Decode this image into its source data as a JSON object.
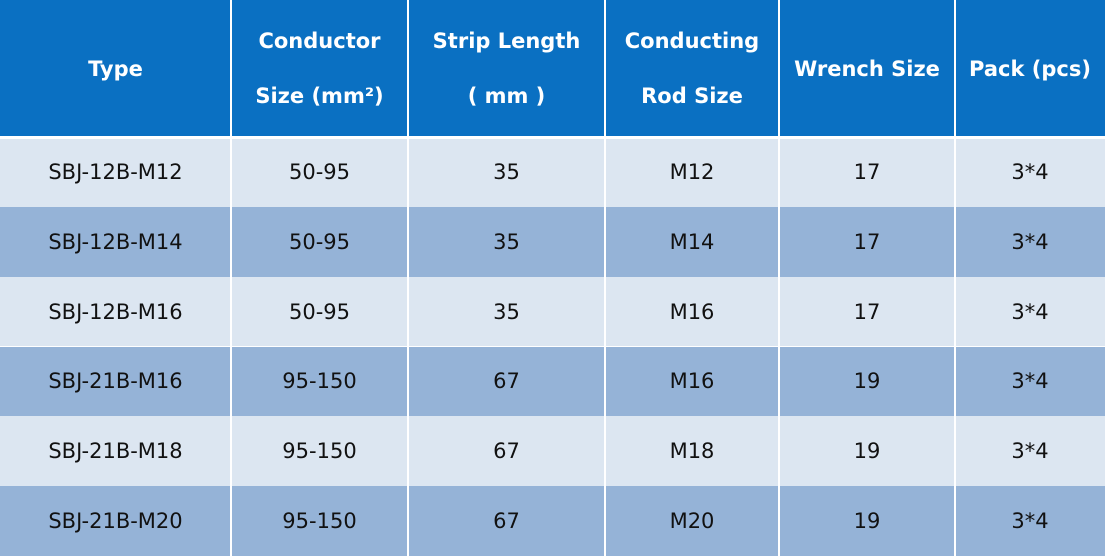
{
  "table": {
    "header": [
      [
        "Type"
      ],
      [
        "Conductor",
        "Size (mm²)"
      ],
      [
        "Strip Length",
        "( mm )"
      ],
      [
        "Conducting",
        "Rod Size"
      ],
      [
        "Wrench Size"
      ],
      [
        "Pack (pcs)"
      ]
    ],
    "rows": [
      [
        "SBJ-12B-M12",
        "50-95",
        "35",
        "M12",
        "17",
        "3*4"
      ],
      [
        "SBJ-12B-M14",
        "50-95",
        "35",
        "M14",
        "17",
        "3*4"
      ],
      [
        "SBJ-12B-M16",
        "50-95",
        "35",
        "M16",
        "17",
        "3*4"
      ],
      [
        "SBJ-21B-M16",
        "95-150",
        "67",
        "M16",
        "19",
        "3*4"
      ],
      [
        "SBJ-21B-M18",
        "95-150",
        "67",
        "M18",
        "19",
        "3*4"
      ],
      [
        "SBJ-21B-M20",
        "95-150",
        "67",
        "M20",
        "19",
        "3*4"
      ]
    ]
  }
}
